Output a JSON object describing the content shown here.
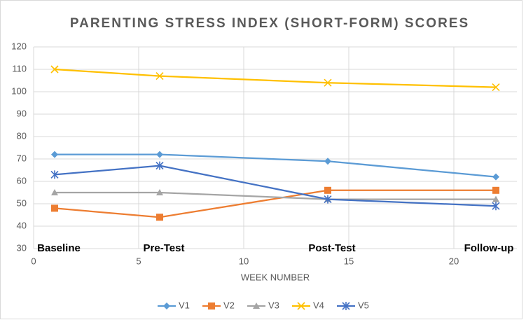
{
  "chart_data": {
    "type": "line",
    "title": "PARENTING STRESS INDEX (SHORT-FORM) SCORES",
    "x_label": "WEEK NUMBER",
    "x": [
      1,
      6,
      14,
      22
    ],
    "annotations": [
      "Baseline",
      "Pre-Test",
      "Post-Test",
      "Follow-up"
    ],
    "series": [
      {
        "name": "V1",
        "color": "#5b9bd5",
        "marker": "diamond",
        "values": [
          72,
          72,
          69,
          62
        ]
      },
      {
        "name": "V2",
        "color": "#ed7d31",
        "marker": "square",
        "values": [
          48,
          44,
          56,
          56
        ]
      },
      {
        "name": "V3",
        "color": "#a5a5a5",
        "marker": "triangle",
        "values": [
          55,
          55,
          52,
          52
        ]
      },
      {
        "name": "V4",
        "color": "#ffc000",
        "marker": "x",
        "values": [
          110,
          107,
          104,
          102
        ]
      },
      {
        "name": "V5",
        "color": "#4472c4",
        "marker": "star",
        "values": [
          63,
          67,
          52,
          49
        ]
      }
    ],
    "xlim": [
      0,
      23
    ],
    "xticks": [
      0,
      5,
      10,
      15,
      20
    ],
    "ylim": [
      30,
      120
    ],
    "yticks": [
      30,
      40,
      50,
      60,
      70,
      80,
      90,
      100,
      110,
      120
    ],
    "grid": true,
    "legend": "bottom"
  }
}
